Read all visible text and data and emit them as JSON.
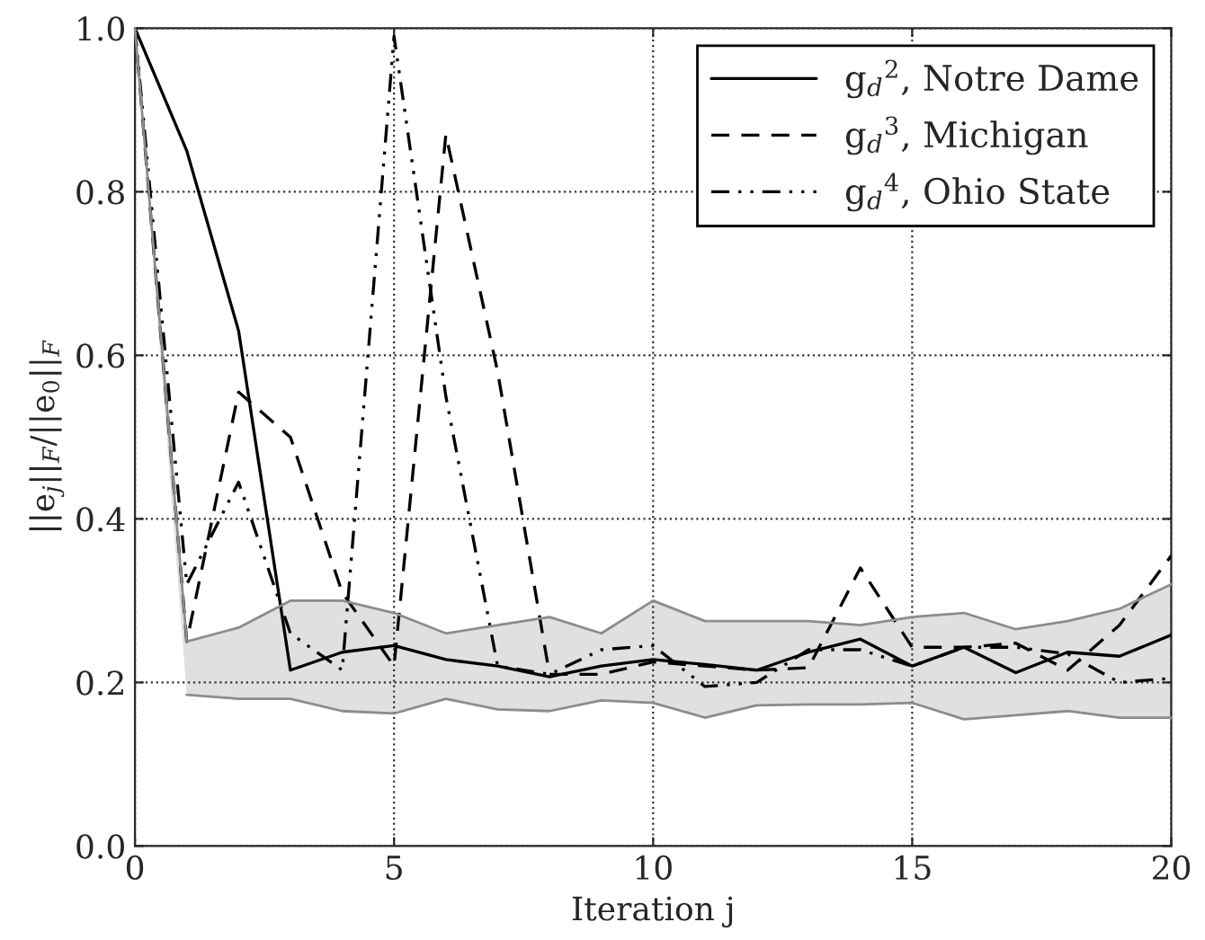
{
  "chart_data": {
    "type": "line",
    "xlabel": "Iteration j",
    "ylabel": "||e$_{j}$||$_{F}$/||e$_{0}$||$_{F}$",
    "x": [
      0,
      1,
      2,
      3,
      4,
      5,
      6,
      7,
      8,
      9,
      10,
      11,
      12,
      13,
      14,
      15,
      16,
      17,
      18,
      19,
      20
    ],
    "series": [
      {
        "type": "line",
        "color": "#8c8c8c",
        "line_style": "solid",
        "values": [
          null,
          0.185,
          0.18,
          0.18,
          0.165,
          0.162,
          0.18,
          0.167,
          0.165,
          0.178,
          0.175,
          0.157,
          0.172,
          0.173,
          0.173,
          0.175,
          0.155,
          0.16,
          0.165,
          0.157,
          0.157
        ]
      },
      {
        "type": "area",
        "color": "#e0e0e2",
        "values": [
          1.0,
          0.25,
          0.267,
          0.3,
          0.3,
          0.285,
          0.26,
          0.27,
          0.28,
          0.26,
          0.3,
          0.275,
          0.275,
          0.275,
          0.27,
          0.28,
          0.285,
          0.265,
          0.275,
          0.29,
          0.32
        ]
      },
      {
        "name": "g$_{d}$$^{2}$, Notre Dame",
        "color": "#000000",
        "line_style": "solid",
        "values": [
          1.0,
          0.85,
          0.63,
          0.215,
          0.237,
          0.245,
          0.228,
          0.22,
          0.207,
          0.22,
          0.228,
          0.222,
          0.215,
          0.237,
          0.253,
          0.22,
          0.243,
          0.212,
          0.237,
          0.232,
          0.258
        ]
      },
      {
        "name": "g$_{d}$$^{3}$, Michigan",
        "color": "#000000",
        "line_style": "dashed",
        "values": [
          1.0,
          0.25,
          0.555,
          0.5,
          0.31,
          0.22,
          0.87,
          0.58,
          0.21,
          0.21,
          0.225,
          0.22,
          0.215,
          0.218,
          0.34,
          0.243,
          0.243,
          0.248,
          0.215,
          0.27,
          0.355
        ]
      },
      {
        "name": "g$_{d}$$^{4}$, Ohio State",
        "color": "#000000",
        "line_style": "dashdot",
        "values": [
          1.0,
          0.32,
          0.445,
          0.26,
          0.215,
          0.99,
          0.55,
          0.22,
          0.21,
          0.24,
          0.245,
          0.195,
          0.2,
          0.24,
          0.24,
          0.22,
          0.243,
          0.243,
          0.235,
          0.2,
          0.205
        ]
      }
    ],
    "xlim": [
      0,
      20
    ],
    "ylim": [
      0,
      1
    ],
    "xticks": [
      0,
      5,
      10,
      15,
      20
    ],
    "yticks": [
      {
        "value": 0,
        "label": "0.0"
      },
      {
        "value": 0.2,
        "label": "0.2"
      },
      {
        "value": 0.4,
        "label": "0.4"
      },
      {
        "value": 0.6,
        "label": "0.6"
      },
      {
        "value": 0.8,
        "label": "0.8"
      },
      {
        "value": 1.0,
        "label": "1.0"
      }
    ],
    "grid": true,
    "legend": "top right"
  }
}
